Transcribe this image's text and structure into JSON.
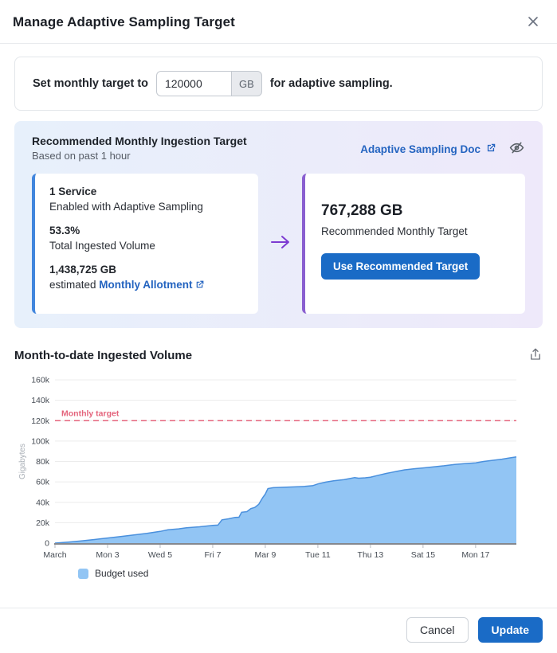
{
  "header": {
    "title": "Manage Adaptive Sampling Target"
  },
  "target_form": {
    "prefix_label": "Set monthly target to",
    "input_value": "120000",
    "unit": "GB",
    "suffix_label": "for adaptive sampling."
  },
  "recommendation": {
    "title": "Recommended Monthly Ingestion Target",
    "subtitle": "Based on past 1 hour",
    "doc_link_label": "Adaptive Sampling Doc",
    "current": {
      "services_count": "1 Service",
      "services_desc": "Enabled with Adaptive Sampling",
      "percent": "53.3%",
      "percent_desc": "Total Ingested Volume",
      "allotment_value": "1,438,725 GB",
      "allotment_prefix": "estimated",
      "allotment_link": "Monthly Allotment"
    },
    "recommended": {
      "value": "767,288 GB",
      "label": "Recommended Monthly Target",
      "button_label": "Use Recommended Target"
    }
  },
  "chart_section": {
    "title": "Month-to-date Ingested Volume"
  },
  "chart_data": {
    "type": "area",
    "title": "Month-to-date Ingested Volume",
    "ylabel": "Gigabytes",
    "ylim": [
      0,
      160000
    ],
    "y_ticks": [
      "0",
      "20k",
      "40k",
      "60k",
      "80k",
      "100k",
      "120k",
      "140k",
      "160k"
    ],
    "x_range_days": [
      0,
      17.55
    ],
    "x_note": "day offset from March 1",
    "x_ticks": [
      {
        "day": 0,
        "label": "March"
      },
      {
        "day": 2,
        "label": "Mon 3"
      },
      {
        "day": 4,
        "label": "Wed 5"
      },
      {
        "day": 6,
        "label": "Fri 7"
      },
      {
        "day": 8,
        "label": "Mar 9"
      },
      {
        "day": 10,
        "label": "Tue 11"
      },
      {
        "day": 12,
        "label": "Thu 13"
      },
      {
        "day": 14,
        "label": "Sat 15"
      },
      {
        "day": 16,
        "label": "Mon 17"
      }
    ],
    "target_line": {
      "value": 120000,
      "label": "Monthly target",
      "color": "#e4647c",
      "style": "dashed"
    },
    "grid": true,
    "legend_position": "bottom-left",
    "series": [
      {
        "name": "Budget used",
        "color": "#92c5f4",
        "stroke": "#4a90dd",
        "points": [
          [
            0,
            0
          ],
          [
            0.5,
            1000
          ],
          [
            1,
            2200
          ],
          [
            1.5,
            3500
          ],
          [
            2,
            5000
          ],
          [
            2.5,
            6500
          ],
          [
            3,
            8000
          ],
          [
            3.5,
            9500
          ],
          [
            4,
            11500
          ],
          [
            4.3,
            13000
          ],
          [
            4.7,
            14000
          ],
          [
            5,
            15000
          ],
          [
            5.5,
            16000
          ],
          [
            6,
            17300
          ],
          [
            6.2,
            17600
          ],
          [
            6.35,
            22800
          ],
          [
            6.6,
            23800
          ],
          [
            6.85,
            25200
          ],
          [
            7.0,
            25400
          ],
          [
            7.1,
            30200
          ],
          [
            7.3,
            30800
          ],
          [
            7.45,
            33800
          ],
          [
            7.6,
            35000
          ],
          [
            7.75,
            38000
          ],
          [
            7.9,
            44500
          ],
          [
            8.0,
            48000
          ],
          [
            8.1,
            53500
          ],
          [
            8.3,
            54300
          ],
          [
            8.7,
            54700
          ],
          [
            9,
            55000
          ],
          [
            9.5,
            55600
          ],
          [
            9.8,
            56300
          ],
          [
            10,
            58000
          ],
          [
            10.3,
            59800
          ],
          [
            10.6,
            61000
          ],
          [
            11,
            62300
          ],
          [
            11.2,
            63200
          ],
          [
            11.4,
            64200
          ],
          [
            11.55,
            63600
          ],
          [
            11.8,
            64000
          ],
          [
            12,
            64600
          ],
          [
            12.3,
            66500
          ],
          [
            12.6,
            68300
          ],
          [
            12.8,
            69300
          ],
          [
            13,
            70300
          ],
          [
            13.3,
            71800
          ],
          [
            13.7,
            73000
          ],
          [
            14,
            73700
          ],
          [
            14.4,
            74800
          ],
          [
            14.8,
            75800
          ],
          [
            15.2,
            77000
          ],
          [
            15.6,
            78000
          ],
          [
            16,
            78600
          ],
          [
            16.3,
            80000
          ],
          [
            16.6,
            81000
          ],
          [
            17,
            82300
          ],
          [
            17.3,
            83500
          ],
          [
            17.55,
            84500
          ]
        ]
      }
    ],
    "legend": [
      {
        "label": "Budget used",
        "color": "#92c5f4"
      }
    ]
  },
  "footer": {
    "cancel_label": "Cancel",
    "update_label": "Update"
  },
  "colors": {
    "primary_button": "#1a6bc6",
    "link_blue": "#2464c0",
    "panel_gradient_start": "#e7f0fb",
    "panel_gradient_end": "#eee9fa",
    "current_card_accent": "#4186dd",
    "recommended_card_accent": "#8a5fd0",
    "arrow_purple": "#7d3bd1",
    "area_fill": "#92c5f4",
    "area_stroke": "#4a90dd",
    "target_line": "#e4647c"
  }
}
